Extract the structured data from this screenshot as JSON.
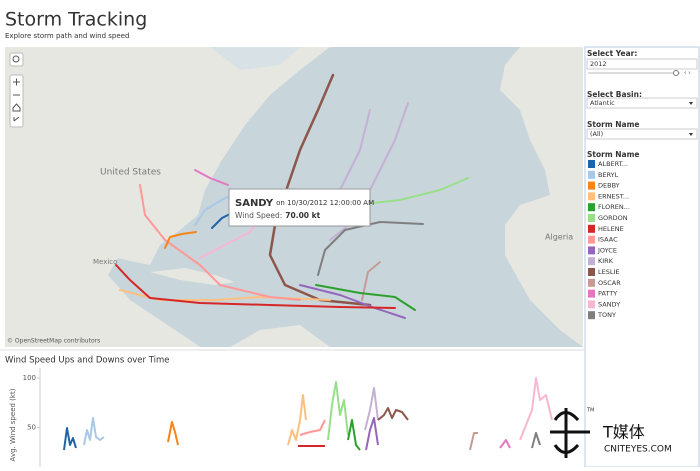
{
  "header": {
    "title": "Storm Tracking",
    "subtitle": "Explore storm path and wind speed"
  },
  "map": {
    "labels": [
      "United States",
      "Mexico",
      "Algeria"
    ],
    "attribution": "© OpenStreetMap contributors",
    "tooltip": {
      "storm": "SANDY",
      "date": "on 10/30/2012 12:00:00 AM",
      "metric": "Wind Speed:",
      "value": "70.00 kt"
    }
  },
  "filters": [
    {
      "label": "Select Year:",
      "value": "2012"
    },
    {
      "label": "Select Basin:",
      "value": "Atlantic"
    },
    {
      "label": "Storm Name",
      "value": "(All)"
    }
  ],
  "legend": {
    "title": "Storm Name",
    "items": [
      {
        "name": "ALBERT...",
        "color": "#1f63a8"
      },
      {
        "name": "BERYL",
        "color": "#a8c8e6"
      },
      {
        "name": "DEBBY",
        "color": "#f58518"
      },
      {
        "name": "ERNEST...",
        "color": "#ffbf7f"
      },
      {
        "name": "FLOREN...",
        "color": "#2ca02c"
      },
      {
        "name": "GORDON",
        "color": "#98df8a"
      },
      {
        "name": "HELENE",
        "color": "#d62728"
      },
      {
        "name": "ISAAC",
        "color": "#ff9896"
      },
      {
        "name": "JOYCE",
        "color": "#9467bd"
      },
      {
        "name": "KIRK",
        "color": "#c5b0d5"
      },
      {
        "name": "LESLIE",
        "color": "#8c564b"
      },
      {
        "name": "OSCAR",
        "color": "#c49c94"
      },
      {
        "name": "PATTY",
        "color": "#e377c2"
      },
      {
        "name": "SANDY",
        "color": "#f7b6d2"
      },
      {
        "name": "TONY",
        "color": "#7f7f7f"
      }
    ]
  },
  "chart_data": {
    "type": "line",
    "title": "Wind Speed Ups and Downs over Time",
    "y_label": "Avg. Wind speed (kt)",
    "ylim": [
      10,
      105
    ],
    "yticks": [
      50,
      100
    ]
  },
  "watermark": {
    "brand": "T媒体",
    "site": "CNITEYES.COM",
    "mark": "TM"
  }
}
